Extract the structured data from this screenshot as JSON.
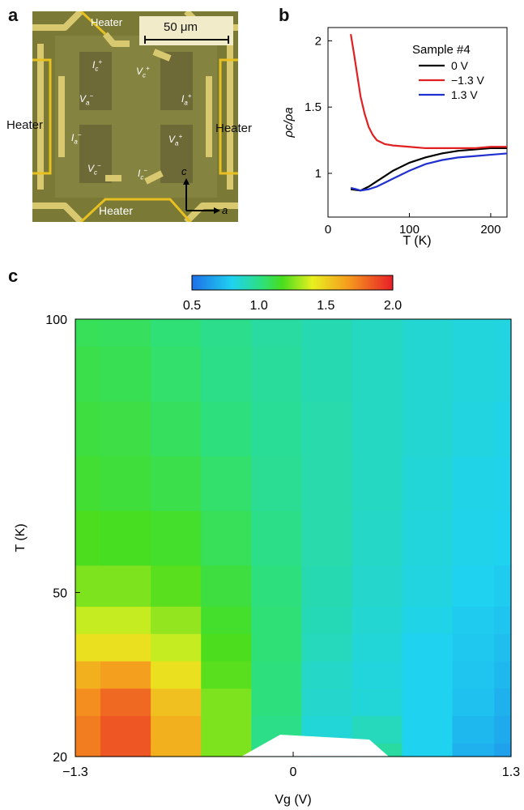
{
  "panels": {
    "a": "a",
    "b": "b",
    "c": "c"
  },
  "micrograph": {
    "scale_bar": "50 μm",
    "heater_labels": [
      "Heater",
      "Heater",
      "Heater",
      "Heater"
    ],
    "axis_c": "c",
    "axis_a": "a",
    "electrodes": [
      {
        "base": "I",
        "sub": "c",
        "sup": "+"
      },
      {
        "base": "V",
        "sub": "c",
        "sup": "+"
      },
      {
        "base": "V",
        "sub": "a",
        "sup": "−"
      },
      {
        "base": "I",
        "sub": "a",
        "sup": "+"
      },
      {
        "base": "I",
        "sub": "a",
        "sup": "−"
      },
      {
        "base": "V",
        "sub": "a",
        "sup": "+"
      },
      {
        "base": "V",
        "sub": "c",
        "sup": "−"
      },
      {
        "base": "I",
        "sub": "c",
        "sup": "−"
      }
    ]
  },
  "chart_data": [
    {
      "type": "line",
      "panel": "b",
      "ylabel": "ρc/ρa",
      "xlabel": "T (K)",
      "xlim": [
        0,
        220
      ],
      "ylim": [
        0.67,
        2.1
      ],
      "xticks": [
        "0",
        "100",
        "200"
      ],
      "yticks": [
        "1",
        "1.5",
        "2"
      ],
      "legend_title": "Sample #4",
      "legend_position": "top-right",
      "series": [
        {
          "name": "0 V",
          "color": "#000000",
          "x": [
            28,
            40,
            50,
            60,
            70,
            80,
            90,
            100,
            120,
            140,
            160,
            180,
            200,
            220
          ],
          "y": [
            0.88,
            0.87,
            0.9,
            0.94,
            0.98,
            1.02,
            1.05,
            1.08,
            1.12,
            1.15,
            1.17,
            1.18,
            1.19,
            1.19
          ]
        },
        {
          "name": "−1.3 V",
          "color": "#e02020",
          "x": [
            28,
            32,
            36,
            40,
            45,
            50,
            55,
            60,
            70,
            80,
            100,
            120,
            150,
            180,
            200,
            220
          ],
          "y": [
            2.05,
            1.9,
            1.74,
            1.58,
            1.45,
            1.35,
            1.29,
            1.25,
            1.22,
            1.21,
            1.2,
            1.19,
            1.19,
            1.19,
            1.2,
            1.2
          ]
        },
        {
          "name": "1.3 V",
          "color": "#2030d0",
          "x": [
            28,
            35,
            40,
            50,
            60,
            70,
            80,
            90,
            100,
            120,
            140,
            160,
            180,
            200,
            220
          ],
          "y": [
            0.89,
            0.88,
            0.87,
            0.88,
            0.9,
            0.93,
            0.96,
            0.99,
            1.02,
            1.07,
            1.1,
            1.12,
            1.13,
            1.14,
            1.15
          ]
        }
      ]
    },
    {
      "type": "heatmap",
      "panel": "c",
      "xlabel": "Vg (V)",
      "ylabel": "T (K)",
      "xlim": [
        -1.3,
        1.3
      ],
      "ylim": [
        20,
        100
      ],
      "xticks": [
        "−1.3",
        "0",
        "1.3"
      ],
      "yticks": [
        "20",
        "50",
        "100"
      ],
      "colorbar": {
        "min": 0.5,
        "max": 2.0,
        "ticks": [
          "0.5",
          "1.0",
          "1.5",
          "2.0"
        ]
      },
      "grid_x": [
        -1.3,
        -1.0,
        -0.7,
        -0.4,
        -0.1,
        0.2,
        0.5,
        0.8,
        1.1,
        1.3
      ],
      "grid_y": [
        20,
        25,
        30,
        35,
        40,
        45,
        50,
        60,
        70,
        80,
        90,
        100
      ],
      "values": [
        [
          1.75,
          1.85,
          1.6,
          1.25,
          1.0,
          0.85,
          0.95,
          0.8,
          0.7,
          0.65
        ],
        [
          1.75,
          1.85,
          1.6,
          1.25,
          1.0,
          0.85,
          0.9,
          0.8,
          0.72,
          0.68
        ],
        [
          1.7,
          1.8,
          1.55,
          1.25,
          1.02,
          0.87,
          0.85,
          0.8,
          0.75,
          0.7
        ],
        [
          1.6,
          1.65,
          1.45,
          1.2,
          1.02,
          0.88,
          0.84,
          0.8,
          0.76,
          0.72
        ],
        [
          1.45,
          1.45,
          1.35,
          1.18,
          1.03,
          0.9,
          0.85,
          0.8,
          0.77,
          0.74
        ],
        [
          1.35,
          1.35,
          1.28,
          1.15,
          1.03,
          0.91,
          0.86,
          0.82,
          0.78,
          0.76
        ],
        [
          1.25,
          1.25,
          1.2,
          1.12,
          1.02,
          0.92,
          0.87,
          0.83,
          0.8,
          0.78
        ],
        [
          1.18,
          1.17,
          1.15,
          1.08,
          1.0,
          0.93,
          0.88,
          0.84,
          0.81,
          0.8
        ],
        [
          1.14,
          1.13,
          1.1,
          1.05,
          0.98,
          0.93,
          0.89,
          0.85,
          0.82,
          0.81
        ],
        [
          1.12,
          1.11,
          1.07,
          1.02,
          0.97,
          0.93,
          0.89,
          0.86,
          0.83,
          0.82
        ],
        [
          1.1,
          1.09,
          1.05,
          1.0,
          0.96,
          0.92,
          0.89,
          0.86,
          0.84,
          0.83
        ],
        [
          1.08,
          1.07,
          1.03,
          0.99,
          0.95,
          0.92,
          0.89,
          0.86,
          0.84,
          0.83
        ]
      ]
    }
  ]
}
